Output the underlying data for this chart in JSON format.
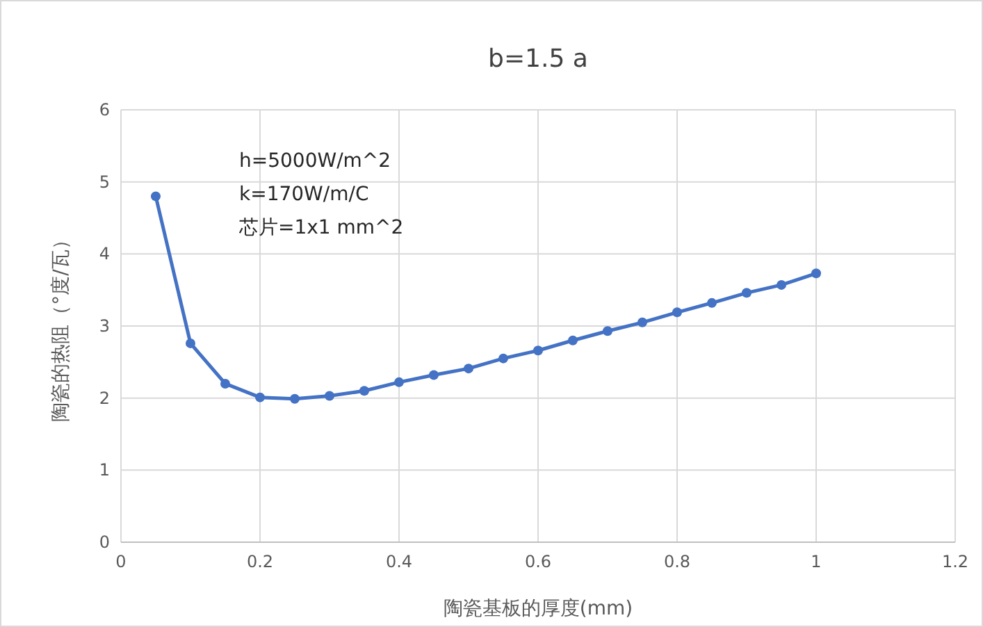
{
  "chart_data": {
    "type": "line",
    "title": "b=1.5 a",
    "xlabel": "陶瓷基板的厚度(mm)",
    "ylabel": "陶瓷的热阻（°度/瓦）",
    "x": [
      0.05,
      0.1,
      0.15,
      0.2,
      0.25,
      0.3,
      0.35,
      0.4,
      0.45,
      0.5,
      0.55,
      0.6,
      0.65,
      0.7,
      0.75,
      0.8,
      0.85,
      0.9,
      0.95,
      1.0
    ],
    "series": [
      {
        "color": "#4472c4",
        "values": [
          4.8,
          2.76,
          2.2,
          2.01,
          1.99,
          2.03,
          2.1,
          2.22,
          2.32,
          2.41,
          2.55,
          2.66,
          2.8,
          2.93,
          3.05,
          3.19,
          3.32,
          3.46,
          3.57,
          3.73
        ]
      }
    ],
    "xlim": [
      0,
      1.2
    ],
    "xticks": [
      0,
      0.2,
      0.4,
      0.6,
      0.8,
      1,
      1.2
    ],
    "ylim": [
      0,
      6
    ],
    "yticks": [
      0,
      1,
      2,
      3,
      4,
      5,
      6
    ],
    "grid": true,
    "marker": "circle",
    "line_style": "solid",
    "annotations": [
      "h=5000W/m^2",
      "k=170W/m/C",
      "芯片=1x1 mm^2"
    ]
  }
}
